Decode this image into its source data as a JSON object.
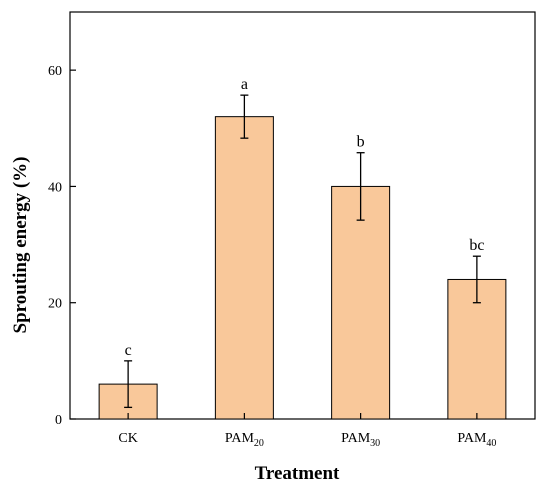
{
  "chart_data": {
    "type": "bar",
    "title": "",
    "xlabel": "Treatment",
    "ylabel": "Sprouting energy (%)",
    "ylim": [
      0,
      70
    ],
    "yticks": [
      0,
      20,
      40,
      60
    ],
    "categories": [
      {
        "base": "CK",
        "sub": ""
      },
      {
        "base": "PAM",
        "sub": "20"
      },
      {
        "base": "PAM",
        "sub": "30"
      },
      {
        "base": "PAM",
        "sub": "40"
      }
    ],
    "values": [
      6,
      52,
      40,
      24
    ],
    "errors": [
      4,
      3.7,
      5.8,
      4
    ],
    "significance": [
      "c",
      "a",
      "b",
      "bc"
    ],
    "bar_color": "#F9C89A",
    "grid": false,
    "legend": "none"
  }
}
